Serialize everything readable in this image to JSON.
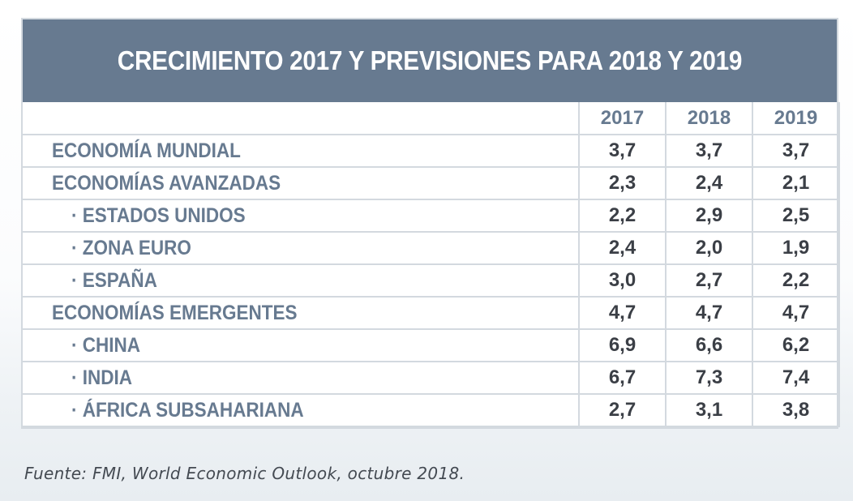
{
  "title": "CRECIMIENTO 2017 Y PREVISIONES PARA 2018 Y 2019",
  "columns": [
    "2017",
    "2018",
    "2019"
  ],
  "rows": [
    {
      "label": "ECONOMÍA MUNDIAL",
      "values": [
        "3,7",
        "3,7",
        "3,7"
      ]
    },
    {
      "label": "ECONOMÍAS AVANZADAS",
      "values": [
        "2,3",
        "2,4",
        "2,1"
      ]
    },
    {
      "label": "· ESTADOS UNIDOS",
      "values": [
        "2,2",
        "2,9",
        "2,5"
      ]
    },
    {
      "label": "· ZONA EURO",
      "values": [
        "2,4",
        "2,0",
        "1,9"
      ]
    },
    {
      "label": "· ESPAÑA",
      "values": [
        "3,0",
        "2,7",
        "2,2"
      ]
    },
    {
      "label": "ECONOMÍAS EMERGENTES",
      "values": [
        "4,7",
        "4,7",
        "4,7"
      ]
    },
    {
      "label": "· CHINA",
      "values": [
        "6,9",
        "6,6",
        "6,2"
      ]
    },
    {
      "label": "· INDIA",
      "values": [
        "6,7",
        "7,3",
        "7,4"
      ]
    },
    {
      "label": "· ÁFRICA SUBSAHARIANA",
      "values": [
        "2,7",
        "3,1",
        "3,8"
      ]
    }
  ],
  "source": "Fuente: FMI, World Economic Outlook, octubre 2018.",
  "colors": {
    "header_bg": "#677a90",
    "label_text": "#677a90",
    "value_text": "#3b3f46",
    "grid": "#d3d9df"
  }
}
